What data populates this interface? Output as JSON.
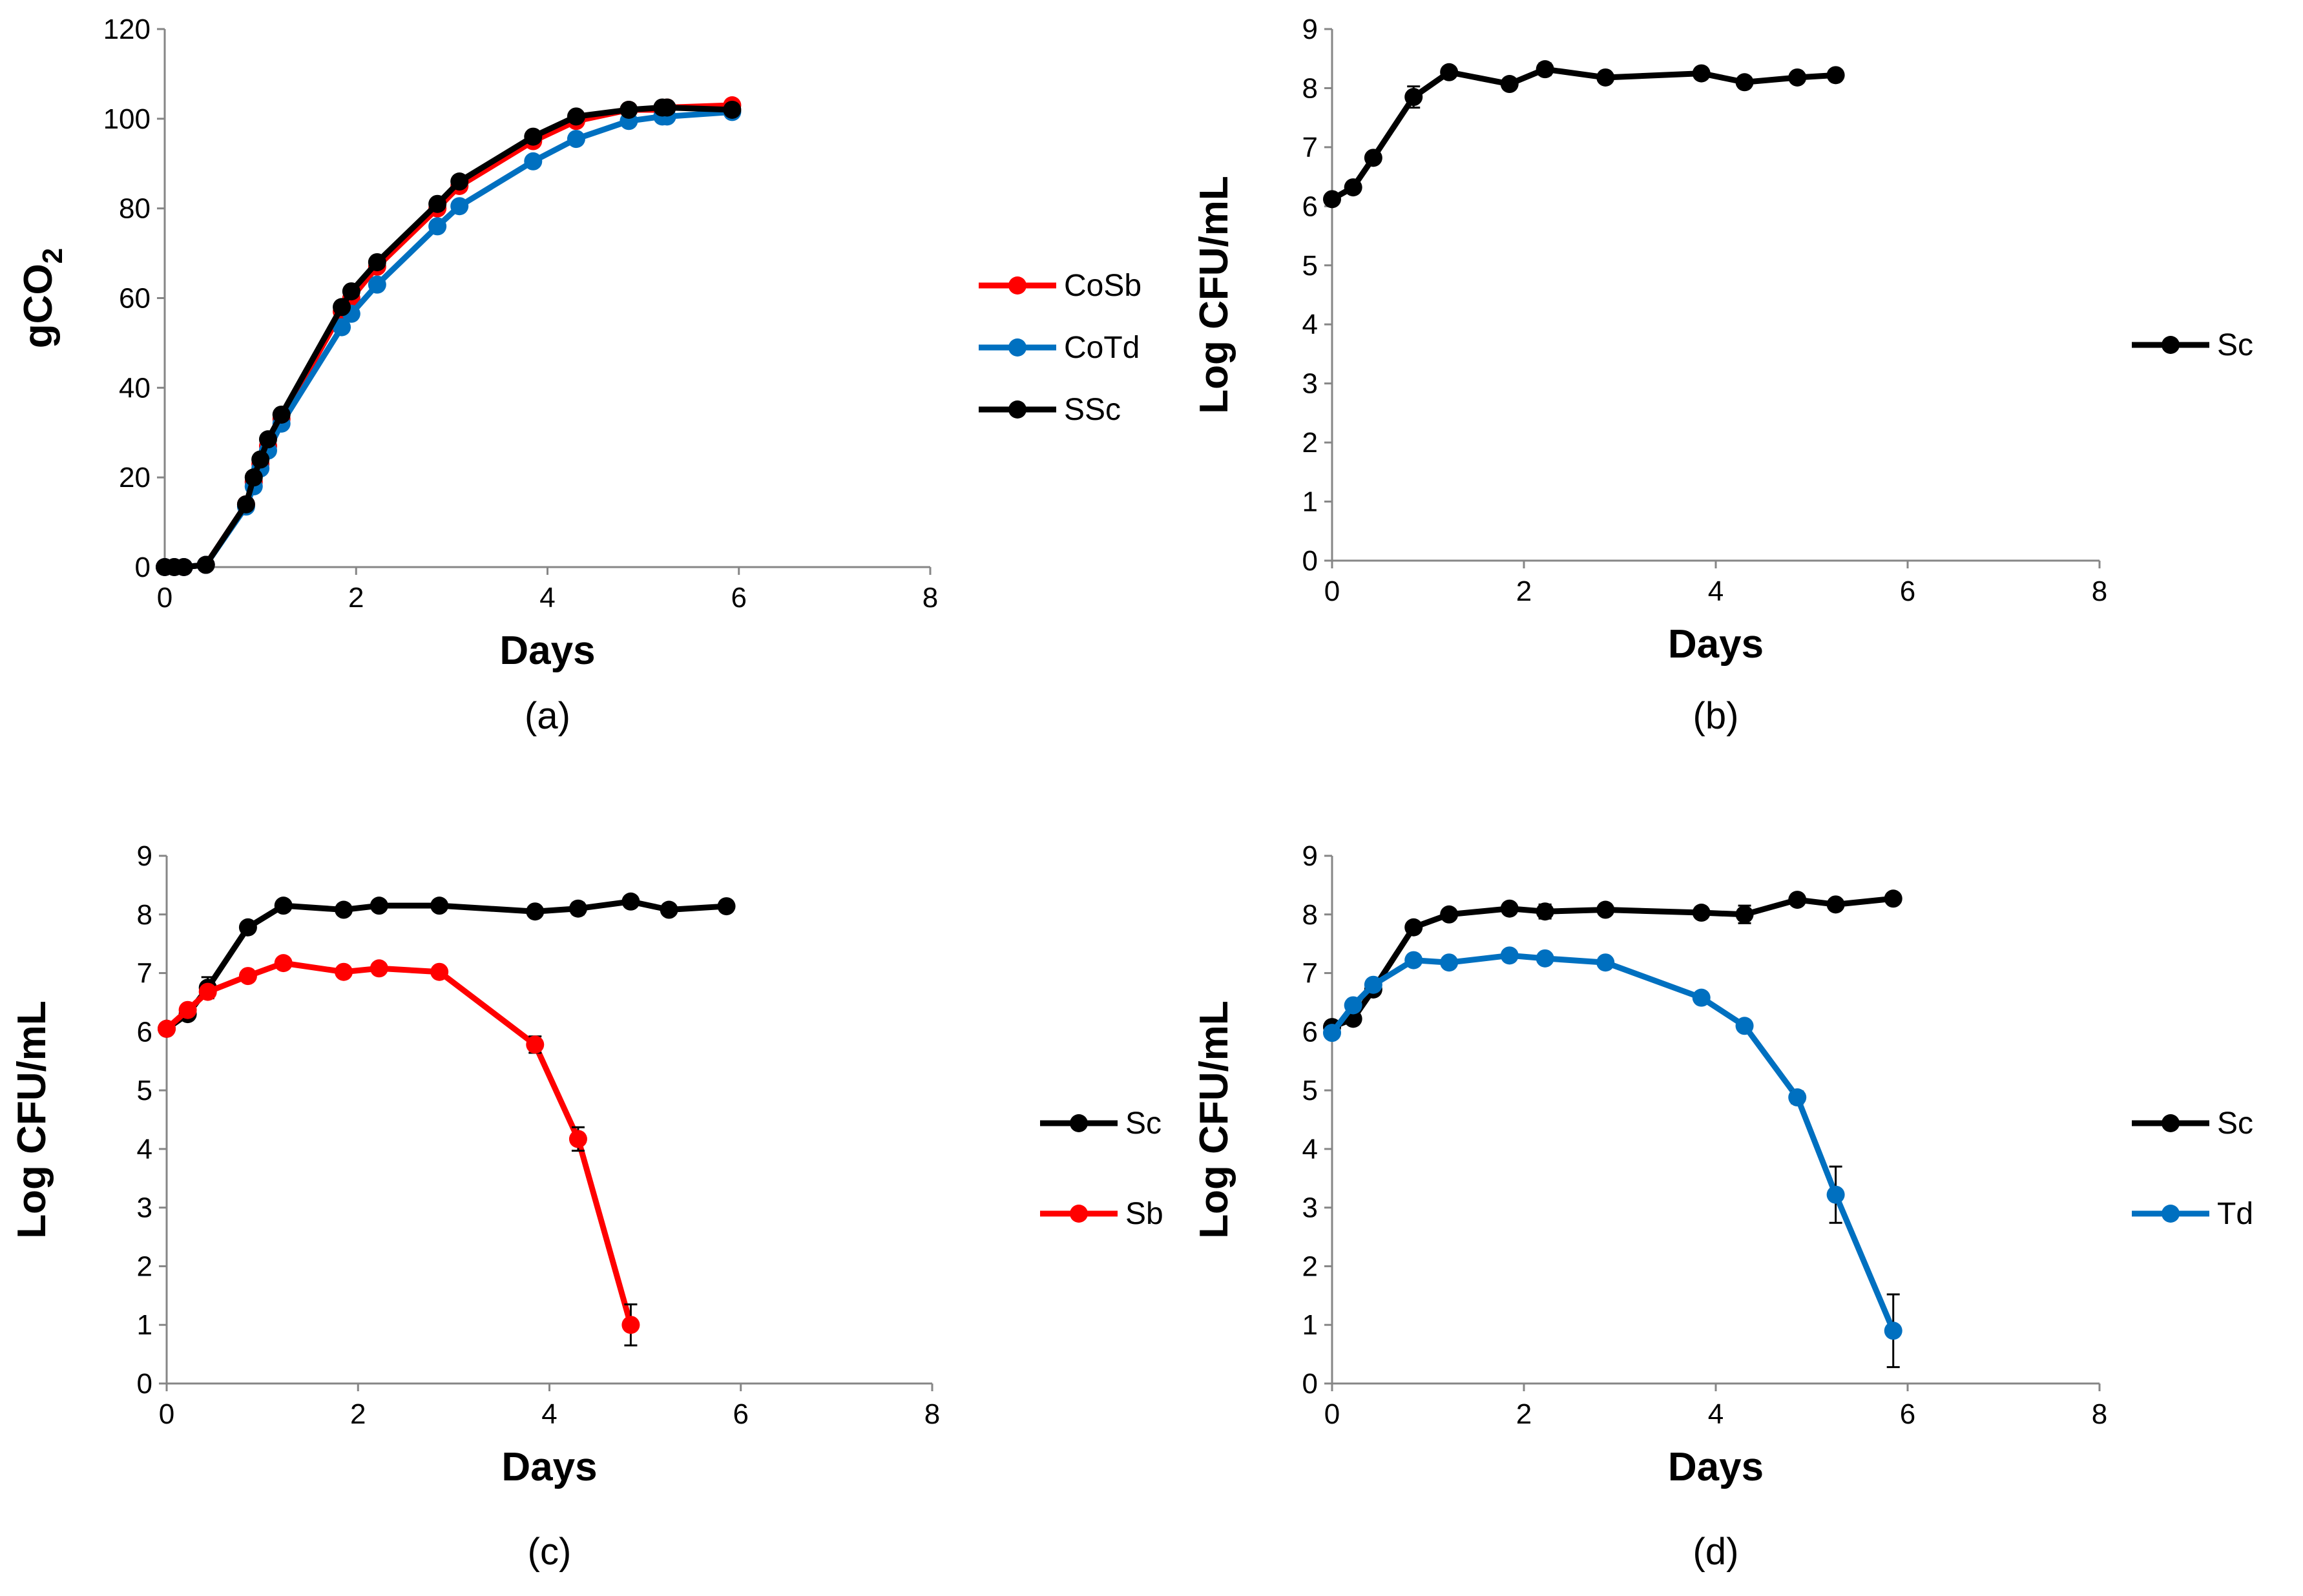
{
  "figure": {
    "colors": {
      "Sc": "#000000",
      "Sb": "#ff0000",
      "Td": "#0070c0"
    }
  },
  "chart_data": [
    {
      "id": "a",
      "type": "line",
      "caption": "(a)",
      "xlabel": "Days",
      "ylabel": "gCO2",
      "xlim": [
        0,
        8
      ],
      "ylim": [
        0,
        120
      ],
      "xticks": [
        0,
        2,
        4,
        6,
        8
      ],
      "yticks": [
        0,
        20,
        40,
        60,
        80,
        100,
        120
      ],
      "legend_position": "right",
      "series": [
        {
          "name": "CoSb",
          "color": "#ff0000",
          "x": [
            0,
            0.1,
            0.2,
            0.43,
            0.85,
            0.93,
            1.0,
            1.08,
            1.22,
            1.85,
            1.95,
            2.22,
            2.85,
            3.08,
            3.85,
            4.3,
            4.85,
            5.2,
            5.25,
            5.93
          ],
          "y": [
            0,
            0,
            0,
            0.5,
            14,
            19,
            23,
            27,
            33,
            57,
            60,
            67,
            80,
            85,
            95,
            99.5,
            102,
            102,
            102.5,
            103
          ]
        },
        {
          "name": "CoTd",
          "color": "#0070c0",
          "x": [
            0,
            0.1,
            0.2,
            0.43,
            0.85,
            0.93,
            1.0,
            1.08,
            1.22,
            1.85,
            1.95,
            2.22,
            2.85,
            3.08,
            3.85,
            4.3,
            4.85,
            5.2,
            5.25,
            5.93
          ],
          "y": [
            0,
            0,
            0,
            0.5,
            13.5,
            18,
            22,
            26,
            32,
            53.5,
            56.5,
            63,
            76,
            80.5,
            90.5,
            95.5,
            99.5,
            100.5,
            100.5,
            101.5
          ]
        },
        {
          "name": "SSc",
          "color": "#000000",
          "x": [
            0,
            0.1,
            0.2,
            0.43,
            0.85,
            0.93,
            1.0,
            1.08,
            1.22,
            1.85,
            1.95,
            2.22,
            2.85,
            3.08,
            3.85,
            4.3,
            4.85,
            5.2,
            5.25,
            5.93
          ],
          "y": [
            0,
            0,
            0,
            0.5,
            14,
            20,
            24,
            28.5,
            34,
            58,
            61.5,
            68,
            81,
            86,
            96,
            100.5,
            102,
            102.5,
            102.5,
            102
          ]
        }
      ]
    },
    {
      "id": "b",
      "type": "line",
      "caption": "(b)",
      "xlabel": "Days",
      "ylabel": "Log CFU/mL",
      "xlim": [
        0,
        8
      ],
      "ylim": [
        0,
        9
      ],
      "xticks": [
        0,
        2,
        4,
        6,
        8
      ],
      "yticks": [
        0,
        1,
        2,
        3,
        4,
        5,
        6,
        7,
        8,
        9
      ],
      "legend_position": "right",
      "series": [
        {
          "name": "Sc",
          "color": "#000000",
          "x": [
            0,
            0.22,
            0.43,
            0.85,
            1.22,
            1.85,
            2.22,
            2.85,
            3.85,
            4.3,
            4.85,
            5.25
          ],
          "y": [
            6.12,
            6.32,
            6.82,
            7.85,
            8.27,
            8.07,
            8.32,
            8.18,
            8.25,
            8.1,
            8.18,
            8.22
          ],
          "err": [
            0,
            0,
            0,
            0.18,
            0,
            0,
            0.1,
            0,
            0,
            0,
            0,
            0
          ]
        }
      ]
    },
    {
      "id": "c",
      "type": "line",
      "caption": "(c)",
      "xlabel": "Days",
      "ylabel": "Log CFU/mL",
      "xlim": [
        0,
        8
      ],
      "ylim": [
        0,
        9
      ],
      "xticks": [
        0,
        2,
        4,
        6,
        8
      ],
      "yticks": [
        0,
        1,
        2,
        3,
        4,
        5,
        6,
        7,
        8,
        9
      ],
      "legend_position": "right",
      "series": [
        {
          "name": "Sc",
          "color": "#000000",
          "x": [
            0,
            0.22,
            0.43,
            0.85,
            1.22,
            1.85,
            2.22,
            2.85,
            3.85,
            4.3,
            4.85,
            5.25,
            5.85
          ],
          "y": [
            6.05,
            6.3,
            6.75,
            7.78,
            8.15,
            8.08,
            8.15,
            8.15,
            8.05,
            8.1,
            8.22,
            8.08,
            8.14
          ],
          "err": [
            0,
            0,
            0.18,
            0,
            0,
            0,
            0,
            0,
            0,
            0.1,
            0,
            0,
            0
          ]
        },
        {
          "name": "Sb",
          "color": "#ff0000",
          "x": [
            0,
            0.22,
            0.43,
            0.85,
            1.22,
            1.85,
            2.22,
            2.85,
            3.85,
            4.3,
            4.85
          ],
          "y": [
            6.05,
            6.37,
            6.68,
            6.95,
            7.17,
            7.02,
            7.08,
            7.02,
            5.78,
            4.17,
            1.0
          ],
          "err": [
            0,
            0,
            0,
            0,
            0,
            0,
            0,
            0,
            0.14,
            0.2,
            0.35
          ]
        }
      ]
    },
    {
      "id": "d",
      "type": "line",
      "caption": "(d)",
      "xlabel": "Days",
      "ylabel": "Log CFU/mL",
      "xlim": [
        0,
        8
      ],
      "ylim": [
        0,
        9
      ],
      "xticks": [
        0,
        2,
        4,
        6,
        8
      ],
      "yticks": [
        0,
        1,
        2,
        3,
        4,
        5,
        6,
        7,
        8,
        9
      ],
      "legend_position": "right",
      "series": [
        {
          "name": "Sc",
          "color": "#000000",
          "x": [
            0,
            0.22,
            0.43,
            0.85,
            1.22,
            1.85,
            2.22,
            2.85,
            3.85,
            4.3,
            4.85,
            5.25,
            5.85
          ],
          "y": [
            6.08,
            6.22,
            6.72,
            7.78,
            8.0,
            8.1,
            8.05,
            8.08,
            8.03,
            8.0,
            8.25,
            8.17,
            8.27
          ],
          "err": [
            0,
            0,
            0,
            0,
            0,
            0,
            0.12,
            0,
            0,
            0.15,
            0,
            0,
            0
          ]
        },
        {
          "name": "Td",
          "color": "#0070c0",
          "x": [
            0,
            0.22,
            0.43,
            0.85,
            1.22,
            1.85,
            2.22,
            2.85,
            3.85,
            4.3,
            4.85,
            5.25,
            5.85
          ],
          "y": [
            5.98,
            6.45,
            6.8,
            7.22,
            7.18,
            7.3,
            7.25,
            7.18,
            6.58,
            6.1,
            4.88,
            3.22,
            0.9
          ],
          "err": [
            0,
            0,
            0,
            0,
            0,
            0,
            0,
            0,
            0,
            0,
            0.1,
            0.48,
            0.62
          ]
        }
      ]
    }
  ]
}
